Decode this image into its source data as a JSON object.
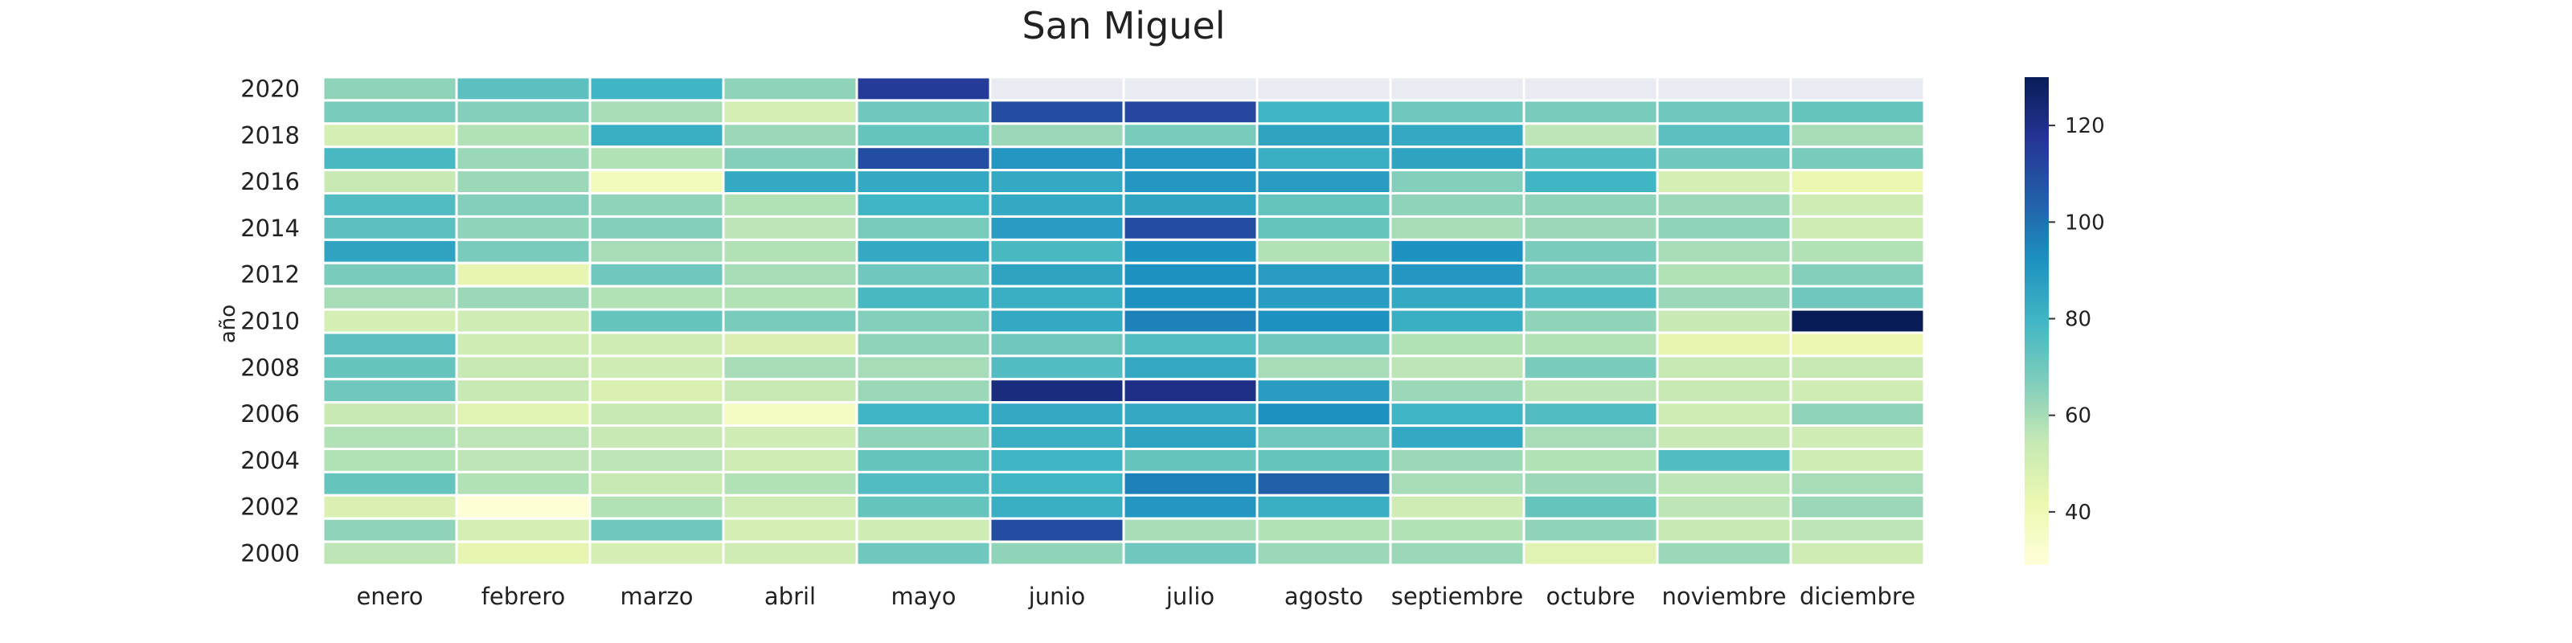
{
  "chart_data": {
    "type": "heatmap",
    "title": "San Miguel",
    "xlabel": "",
    "ylabel": "año",
    "x": [
      "enero",
      "febrero",
      "marzo",
      "abril",
      "mayo",
      "junio",
      "julio",
      "agosto",
      "septiembre",
      "octubre",
      "noviembre",
      "diciembre"
    ],
    "y": [
      2020,
      2019,
      2018,
      2017,
      2016,
      2015,
      2014,
      2013,
      2012,
      2011,
      2010,
      2009,
      2008,
      2007,
      2006,
      2005,
      2004,
      2003,
      2002,
      2001,
      2000
    ],
    "y_tick_labels": [
      "2020",
      "2018",
      "2016",
      "2014",
      "2012",
      "2010",
      "2008",
      "2006",
      "2004",
      "2002",
      "2000"
    ],
    "values": [
      [
        64,
        74,
        80,
        64,
        115,
        null,
        null,
        null,
        null,
        null,
        null,
        null
      ],
      [
        68,
        66,
        60,
        50,
        70,
        110,
        112,
        80,
        70,
        68,
        70,
        72
      ],
      [
        50,
        58,
        82,
        62,
        72,
        62,
        68,
        86,
        84,
        56,
        74,
        60
      ],
      [
        78,
        62,
        58,
        66,
        110,
        90,
        90,
        82,
        86,
        76,
        70,
        68
      ],
      [
        54,
        62,
        38,
        84,
        84,
        84,
        90,
        88,
        66,
        80,
        50,
        42
      ],
      [
        76,
        66,
        64,
        58,
        80,
        84,
        86,
        72,
        64,
        64,
        62,
        52
      ],
      [
        74,
        64,
        66,
        56,
        68,
        88,
        110,
        72,
        60,
        62,
        64,
        52
      ],
      [
        86,
        68,
        60,
        58,
        84,
        78,
        92,
        58,
        92,
        68,
        60,
        58
      ],
      [
        68,
        44,
        70,
        60,
        70,
        86,
        92,
        88,
        90,
        68,
        58,
        66
      ],
      [
        60,
        62,
        58,
        58,
        78,
        82,
        92,
        88,
        84,
        76,
        62,
        70
      ],
      [
        50,
        52,
        72,
        68,
        66,
        84,
        96,
        92,
        82,
        64,
        54,
        130
      ],
      [
        74,
        52,
        52,
        48,
        64,
        70,
        76,
        70,
        58,
        58,
        44,
        42
      ],
      [
        72,
        54,
        52,
        60,
        60,
        76,
        84,
        60,
        56,
        68,
        54,
        54
      ],
      [
        70,
        54,
        48,
        54,
        62,
        122,
        120,
        88,
        62,
        56,
        54,
        52
      ],
      [
        54,
        46,
        54,
        36,
        80,
        84,
        84,
        92,
        80,
        76,
        52,
        64
      ],
      [
        58,
        56,
        54,
        52,
        64,
        82,
        86,
        70,
        84,
        60,
        54,
        52
      ],
      [
        58,
        56,
        56,
        52,
        72,
        80,
        72,
        72,
        62,
        58,
        76,
        52
      ],
      [
        72,
        58,
        54,
        58,
        76,
        80,
        96,
        104,
        60,
        62,
        56,
        60
      ],
      [
        48,
        30,
        58,
        52,
        72,
        82,
        90,
        82,
        52,
        72,
        56,
        62
      ],
      [
        64,
        50,
        70,
        50,
        52,
        110,
        60,
        58,
        58,
        64,
        54,
        56
      ],
      [
        56,
        44,
        50,
        52,
        70,
        64,
        70,
        62,
        62,
        46,
        62,
        52
      ]
    ],
    "vmin": 29,
    "vmax": 130,
    "colormap": "YlGnBu",
    "missing_color": "#eaeaf2",
    "grid": false,
    "colorbar": {
      "ticks": [
        40,
        60,
        80,
        100,
        120
      ],
      "tick_labels": [
        "40",
        "60",
        "80",
        "100",
        "120"
      ],
      "placement": "right"
    }
  }
}
